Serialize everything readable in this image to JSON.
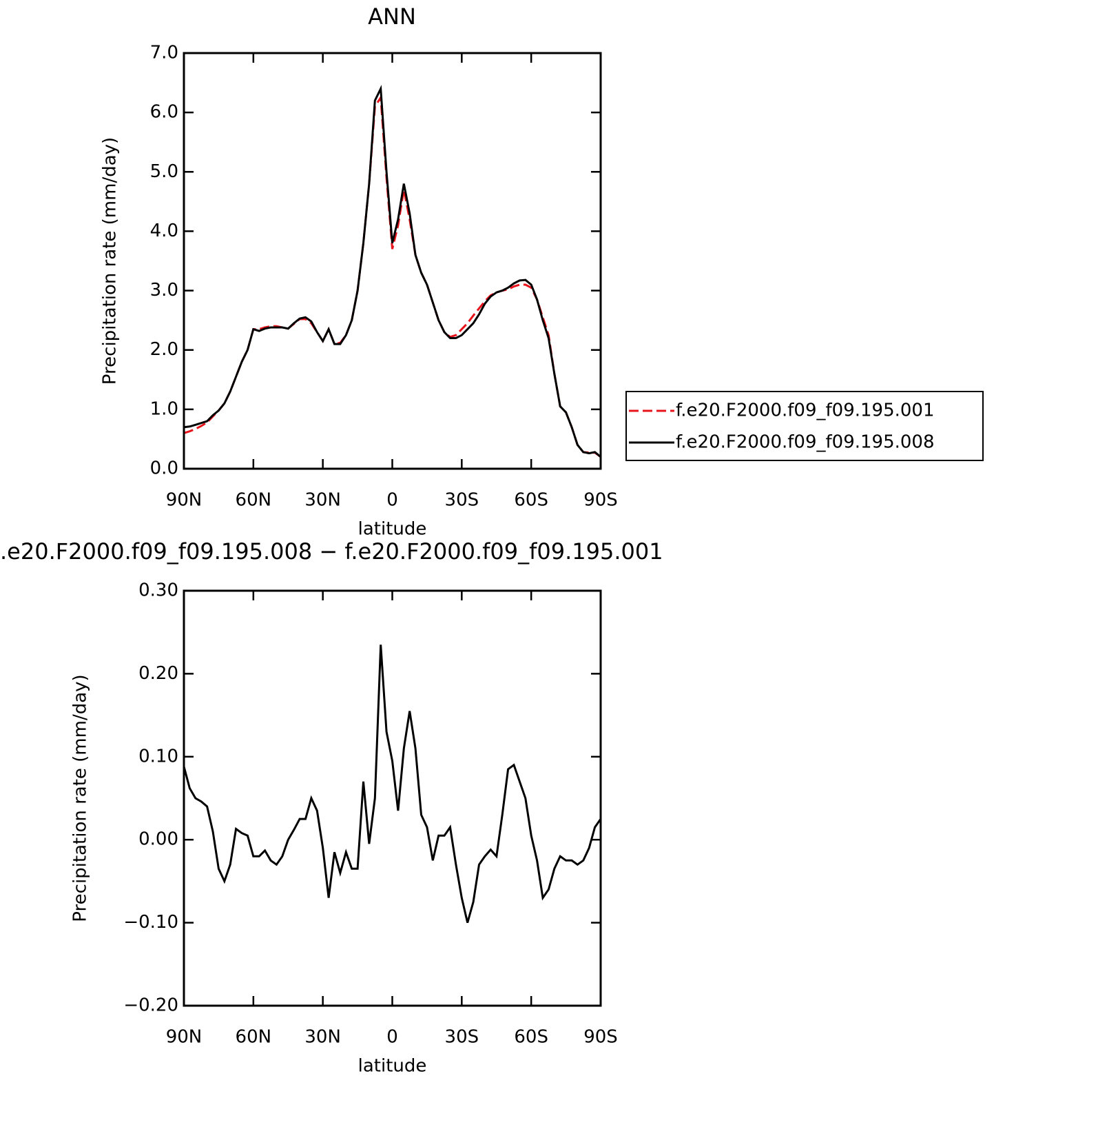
{
  "chart_data": [
    {
      "type": "line",
      "title": "ANN",
      "xlabel": "latitude",
      "ylabel": "Precipitation rate (mm/day)",
      "x": [
        90,
        87.5,
        85,
        82.5,
        80,
        77.5,
        75,
        72.5,
        70,
        67.5,
        65,
        62.5,
        60,
        57.5,
        55,
        52.5,
        50,
        47.5,
        45,
        42.5,
        40,
        37.5,
        35,
        32.5,
        30,
        27.5,
        25,
        22.5,
        20,
        17.5,
        15,
        12.5,
        10,
        7.5,
        5,
        2.5,
        0,
        -2.5,
        -5,
        -7.5,
        -10,
        -12.5,
        -15,
        -17.5,
        -20,
        -22.5,
        -25,
        -27.5,
        -30,
        -32.5,
        -35,
        -37.5,
        -40,
        -42.5,
        -45,
        -47.5,
        -50,
        -52.5,
        -55,
        -57.5,
        -60,
        -62.5,
        -65,
        -67.5,
        -70,
        -72.5,
        -75,
        -77.5,
        -80,
        -82.5,
        -85,
        -87.5,
        -90
      ],
      "series": [
        {
          "name": "f.e20.F2000.f09_f09.195.001",
          "color": "#e8141c",
          "dashed": true,
          "values": [
            0.6,
            0.63,
            0.67,
            0.72,
            0.78,
            0.88,
            0.98,
            1.1,
            1.3,
            1.55,
            1.8,
            2.0,
            2.35,
            2.35,
            2.38,
            2.4,
            2.4,
            2.38,
            2.36,
            2.44,
            2.52,
            2.52,
            2.45,
            2.3,
            2.15,
            2.35,
            2.1,
            2.12,
            2.25,
            2.5,
            3.0,
            3.8,
            4.8,
            6.1,
            6.25,
            4.9,
            3.7,
            4.1,
            4.7,
            4.2,
            3.6,
            3.3,
            3.1,
            2.8,
            2.5,
            2.3,
            2.22,
            2.25,
            2.35,
            2.45,
            2.58,
            2.7,
            2.82,
            2.92,
            2.97,
            3.0,
            3.02,
            3.07,
            3.1,
            3.1,
            3.05,
            2.85,
            2.55,
            2.25,
            1.6,
            1.05,
            0.95,
            0.7,
            0.4,
            0.28,
            0.27,
            0.27,
            0.2
          ]
        },
        {
          "name": "f.e20.F2000.f09_f09.195.008",
          "color": "#000000",
          "dashed": false,
          "values": [
            0.7,
            0.71,
            0.74,
            0.77,
            0.8,
            0.9,
            0.98,
            1.1,
            1.3,
            1.55,
            1.8,
            2.0,
            2.35,
            2.32,
            2.36,
            2.38,
            2.38,
            2.38,
            2.36,
            2.45,
            2.53,
            2.55,
            2.48,
            2.3,
            2.15,
            2.35,
            2.1,
            2.1,
            2.25,
            2.5,
            3.0,
            3.8,
            4.8,
            6.2,
            6.4,
            5.0,
            3.8,
            4.2,
            4.8,
            4.3,
            3.6,
            3.3,
            3.1,
            2.8,
            2.5,
            2.3,
            2.2,
            2.2,
            2.25,
            2.35,
            2.45,
            2.6,
            2.78,
            2.9,
            2.97,
            3.0,
            3.05,
            3.12,
            3.17,
            3.18,
            3.1,
            2.85,
            2.5,
            2.2,
            1.6,
            1.05,
            0.95,
            0.7,
            0.4,
            0.28,
            0.26,
            0.28,
            0.2
          ]
        }
      ],
      "xlim": [
        90,
        -90
      ],
      "xticks": [
        {
          "value": 90,
          "label": "90N"
        },
        {
          "value": 60,
          "label": "60N"
        },
        {
          "value": 30,
          "label": "30N"
        },
        0,
        {
          "value": -30,
          "label": "30S"
        },
        {
          "value": -60,
          "label": "60S"
        },
        {
          "value": -90,
          "label": "90S"
        }
      ],
      "ylim": [
        0,
        7
      ],
      "yticks": [
        {
          "value": 0,
          "label": "0.0"
        },
        {
          "value": 1,
          "label": "1.0"
        },
        {
          "value": 2,
          "label": "2.0"
        },
        {
          "value": 3,
          "label": "3.0"
        },
        {
          "value": 4,
          "label": "4.0"
        },
        {
          "value": 5,
          "label": "5.0"
        },
        {
          "value": 6,
          "label": "6.0"
        },
        {
          "value": 7,
          "label": "7.0"
        }
      ],
      "legend": "right"
    },
    {
      "type": "line",
      "title": ".e20.F2000.f09_f09.195.008 − f.e20.F2000.f09_f09.195.001",
      "xlabel": "latitude",
      "ylabel": "Precipitation rate (mm/day)",
      "x": [
        90,
        87.5,
        85,
        82.5,
        80,
        77.5,
        75,
        72.5,
        70,
        67.5,
        65,
        62.5,
        60,
        57.5,
        55,
        52.5,
        50,
        47.5,
        45,
        42.5,
        40,
        37.5,
        35,
        32.5,
        30,
        27.5,
        25,
        22.5,
        20,
        17.5,
        15,
        12.5,
        10,
        7.5,
        5,
        2.5,
        0,
        -2.5,
        -5,
        -7.5,
        -10,
        -12.5,
        -15,
        -17.5,
        -20,
        -22.5,
        -25,
        -27.5,
        -30,
        -32.5,
        -35,
        -37.5,
        -40,
        -42.5,
        -45,
        -47.5,
        -50,
        -52.5,
        -55,
        -57.5,
        -60,
        -62.5,
        -65,
        -67.5,
        -70,
        -72.5,
        -75,
        -77.5,
        -80,
        -82.5,
        -85,
        -87.5,
        -90
      ],
      "series": [
        {
          "name": null,
          "color": "#000000",
          "dashed": false,
          "values": [
            0.088,
            0.062,
            0.05,
            0.046,
            0.04,
            0.01,
            -0.035,
            -0.05,
            -0.03,
            0.013,
            0.008,
            0.005,
            -0.02,
            -0.02,
            -0.013,
            -0.025,
            -0.03,
            -0.02,
            0.0,
            0.012,
            0.025,
            0.025,
            0.05,
            0.035,
            -0.01,
            -0.07,
            -0.015,
            -0.04,
            -0.015,
            -0.035,
            -0.035,
            0.07,
            -0.005,
            0.05,
            0.235,
            0.13,
            0.095,
            0.035,
            0.11,
            0.155,
            0.11,
            0.03,
            0.015,
            -0.025,
            0.005,
            0.005,
            0.015,
            -0.03,
            -0.07,
            -0.1,
            -0.075,
            -0.03,
            -0.02,
            -0.012,
            -0.02,
            0.03,
            0.085,
            0.09,
            0.07,
            0.05,
            0.005,
            -0.025,
            -0.07,
            -0.06,
            -0.035,
            -0.02,
            -0.025,
            -0.025,
            -0.03,
            -0.025,
            -0.01,
            0.015,
            0.025
          ]
        }
      ],
      "xlim": [
        90,
        -90
      ],
      "xticks": [
        {
          "value": 90,
          "label": "90N"
        },
        {
          "value": 60,
          "label": "60N"
        },
        {
          "value": 30,
          "label": "30N"
        },
        0,
        {
          "value": -30,
          "label": "30S"
        },
        {
          "value": -60,
          "label": "60S"
        },
        {
          "value": -90,
          "label": "90S"
        }
      ],
      "ylim": [
        -0.2,
        0.3
      ],
      "yticks": [
        {
          "value": -0.2,
          "label": "−0.20"
        },
        {
          "value": -0.1,
          "label": "−0.10"
        },
        {
          "value": 0,
          "label": "0.00"
        },
        {
          "value": 0.1,
          "label": "0.10"
        },
        {
          "value": 0.2,
          "label": "0.20"
        },
        {
          "value": 0.3,
          "label": "0.30"
        }
      ]
    }
  ]
}
